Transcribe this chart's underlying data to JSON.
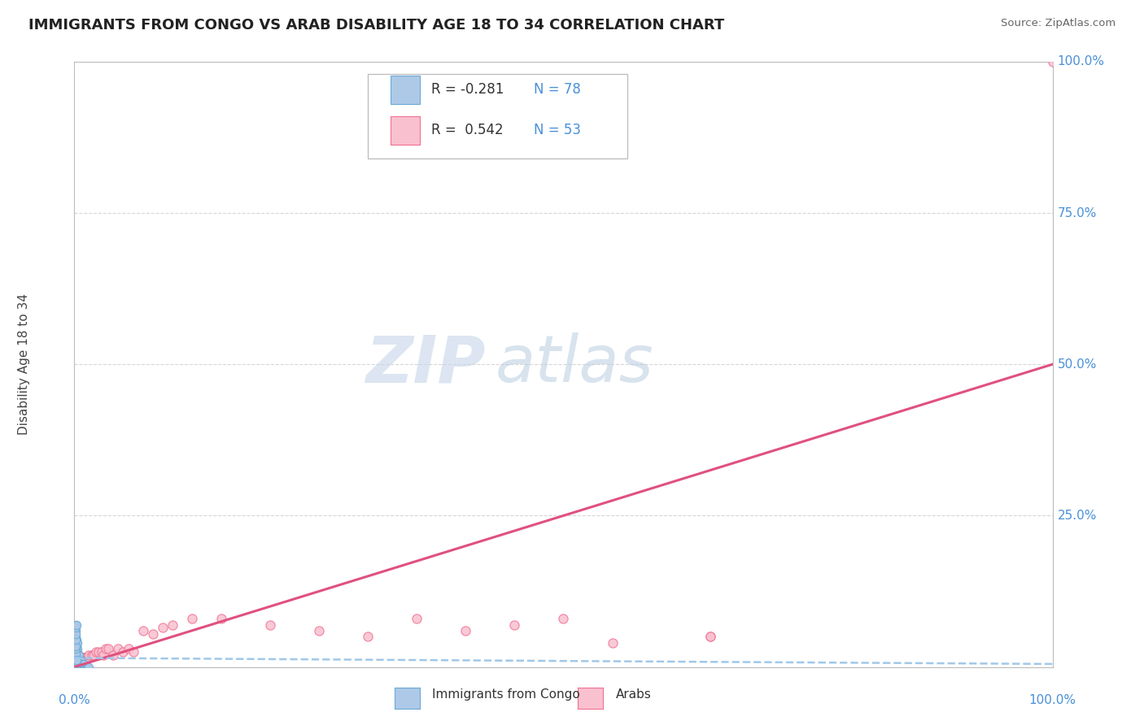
{
  "title": "IMMIGRANTS FROM CONGO VS ARAB DISABILITY AGE 18 TO 34 CORRELATION CHART",
  "source": "Source: ZipAtlas.com",
  "ylabel": "Disability Age 18 to 34",
  "legend_label1": "Immigrants from Congo",
  "legend_label2": "Arabs",
  "watermark_zip": "ZIP",
  "watermark_atlas": "atlas",
  "color_blue_fill": "#aec9e8",
  "color_blue_edge": "#6aaad4",
  "color_pink_fill": "#f9c0d0",
  "color_pink_edge": "#f07090",
  "color_blue_text": "#4a90d9",
  "color_pink_line": "#e05080",
  "color_blue_line": "#a0c8e8",
  "color_grid": "#cccccc",
  "background_color": "#ffffff",
  "xlim": [
    0.0,
    1.0
  ],
  "ylim": [
    0.0,
    1.0
  ],
  "ytick_positions": [
    0.0,
    0.25,
    0.5,
    0.75,
    1.0
  ],
  "ytick_labels": [
    "0.0%",
    "25.0%",
    "50.0%",
    "75.0%",
    "100.0%"
  ],
  "xtick_left_label": "0.0%",
  "xtick_right_label": "100.0%",
  "arab_line_x0": 0.0,
  "arab_line_y0": 0.0,
  "arab_line_x1": 1.0,
  "arab_line_y1": 0.5,
  "congo_line_x0": 0.0,
  "congo_line_y0": 0.015,
  "congo_line_x1": 1.0,
  "congo_line_y1": 0.005,
  "congo_points_x": [
    0.0,
    0.0,
    0.0,
    0.001,
    0.001,
    0.001,
    0.001,
    0.001,
    0.001,
    0.001,
    0.001,
    0.001,
    0.001,
    0.001,
    0.001,
    0.002,
    0.002,
    0.002,
    0.002,
    0.002,
    0.002,
    0.002,
    0.002,
    0.002,
    0.002,
    0.003,
    0.003,
    0.003,
    0.003,
    0.003,
    0.003,
    0.003,
    0.003,
    0.004,
    0.004,
    0.004,
    0.004,
    0.004,
    0.005,
    0.005,
    0.005,
    0.005,
    0.005,
    0.006,
    0.006,
    0.006,
    0.007,
    0.007,
    0.007,
    0.008,
    0.008,
    0.009,
    0.009,
    0.01,
    0.01,
    0.011,
    0.012,
    0.013,
    0.014,
    0.015,
    0.0,
    0.0,
    0.0,
    0.001,
    0.001,
    0.001,
    0.001,
    0.001,
    0.002,
    0.002,
    0.002,
    0.002,
    0.001,
    0.001,
    0.001,
    0.001,
    0.001,
    0.002
  ],
  "congo_points_y": [
    0.0,
    0.005,
    0.01,
    0.0,
    0.005,
    0.01,
    0.015,
    0.02,
    0.025,
    0.03,
    0.035,
    0.04,
    0.05,
    0.06,
    0.07,
    0.0,
    0.005,
    0.01,
    0.015,
    0.02,
    0.025,
    0.03,
    0.035,
    0.04,
    0.045,
    0.0,
    0.005,
    0.01,
    0.015,
    0.02,
    0.025,
    0.03,
    0.04,
    0.0,
    0.005,
    0.01,
    0.015,
    0.02,
    0.0,
    0.005,
    0.01,
    0.015,
    0.02,
    0.0,
    0.005,
    0.01,
    0.0,
    0.005,
    0.01,
    0.0,
    0.005,
    0.0,
    0.005,
    0.0,
    0.005,
    0.0,
    0.0,
    0.0,
    0.0,
    0.0,
    0.01,
    0.015,
    0.02,
    0.005,
    0.008,
    0.012,
    0.018,
    0.022,
    0.003,
    0.006,
    0.009,
    0.012,
    0.03,
    0.035,
    0.045,
    0.055,
    0.065,
    0.07
  ],
  "arab_points_x": [
    0.0,
    0.001,
    0.001,
    0.001,
    0.002,
    0.002,
    0.002,
    0.003,
    0.003,
    0.004,
    0.004,
    0.005,
    0.005,
    0.006,
    0.006,
    0.007,
    0.008,
    0.009,
    0.01,
    0.011,
    0.012,
    0.015,
    0.015,
    0.018,
    0.02,
    0.022,
    0.025,
    0.028,
    0.03,
    0.032,
    0.035,
    0.04,
    0.045,
    0.05,
    0.055,
    0.06,
    0.07,
    0.08,
    0.09,
    0.1,
    0.12,
    0.15,
    0.2,
    0.25,
    0.3,
    0.35,
    0.4,
    0.45,
    0.5,
    0.55,
    0.65,
    0.65,
    1.0
  ],
  "arab_points_y": [
    0.0,
    0.0,
    0.005,
    0.01,
    0.0,
    0.005,
    0.01,
    0.005,
    0.01,
    0.005,
    0.01,
    0.005,
    0.015,
    0.005,
    0.01,
    0.01,
    0.01,
    0.015,
    0.015,
    0.015,
    0.015,
    0.015,
    0.02,
    0.02,
    0.02,
    0.025,
    0.025,
    0.025,
    0.02,
    0.03,
    0.03,
    0.02,
    0.03,
    0.025,
    0.03,
    0.025,
    0.06,
    0.055,
    0.065,
    0.07,
    0.08,
    0.08,
    0.07,
    0.06,
    0.05,
    0.08,
    0.06,
    0.07,
    0.08,
    0.04,
    0.05,
    0.05,
    1.0
  ]
}
